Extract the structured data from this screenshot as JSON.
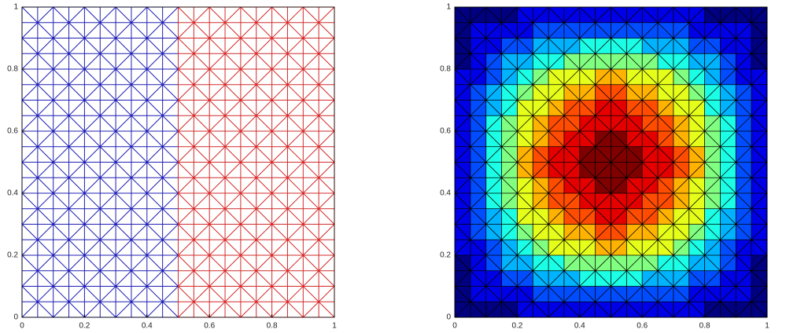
{
  "chart_data": [
    {
      "type": "mesh",
      "xlim": [
        0,
        1
      ],
      "ylim": [
        0,
        1
      ],
      "xticks": [
        0,
        0.2,
        0.4,
        0.6,
        0.8,
        1
      ],
      "yticks": [
        0,
        0.2,
        0.4,
        0.6,
        0.8,
        1
      ],
      "divisions": 20,
      "regions": [
        {
          "color": "#1f1fb4",
          "xlim": [
            0,
            0.5
          ]
        },
        {
          "color": "#d42a2a",
          "xlim": [
            0.5,
            1
          ]
        }
      ]
    },
    {
      "type": "heatmap",
      "colormap": "jet",
      "xlim": [
        0,
        1
      ],
      "ylim": [
        0,
        1
      ],
      "xticks": [
        0,
        0.2,
        0.4,
        0.6,
        0.8,
        1
      ],
      "yticks": [
        0,
        0.2,
        0.4,
        0.6,
        0.8,
        1
      ],
      "z": [
        [
          0,
          0,
          0,
          0,
          0.1,
          0.1,
          0.1,
          0.1,
          0.1,
          0.1,
          0.1,
          0.1,
          0.1,
          0.1,
          0.1,
          0.1,
          0,
          0,
          0,
          0
        ],
        [
          0,
          0.1,
          0.1,
          0.1,
          0.1,
          0.2,
          0.2,
          0.2,
          0.2,
          0.2,
          0.2,
          0.2,
          0.2,
          0.2,
          0.2,
          0.1,
          0.1,
          0.1,
          0.1,
          0
        ],
        [
          0,
          0.1,
          0.1,
          0.2,
          0.2,
          0.3,
          0.3,
          0.3,
          0.4,
          0.4,
          0.4,
          0.4,
          0.3,
          0.3,
          0.3,
          0.2,
          0.2,
          0.1,
          0.1,
          0
        ],
        [
          0,
          0.1,
          0.2,
          0.3,
          0.3,
          0.4,
          0.4,
          0.5,
          0.5,
          0.5,
          0.5,
          0.5,
          0.5,
          0.4,
          0.4,
          0.3,
          0.3,
          0.2,
          0.1,
          0
        ],
        [
          0.1,
          0.1,
          0.2,
          0.3,
          0.4,
          0.5,
          0.6,
          0.6,
          0.6,
          0.7,
          0.7,
          0.6,
          0.6,
          0.6,
          0.5,
          0.4,
          0.3,
          0.2,
          0.1,
          0.1
        ],
        [
          0.1,
          0.2,
          0.3,
          0.4,
          0.5,
          0.6,
          0.6,
          0.7,
          0.7,
          0.8,
          0.8,
          0.7,
          0.7,
          0.6,
          0.6,
          0.5,
          0.4,
          0.3,
          0.2,
          0.1
        ],
        [
          0.1,
          0.2,
          0.3,
          0.4,
          0.6,
          0.6,
          0.7,
          0.8,
          0.8,
          0.9,
          0.9,
          0.8,
          0.8,
          0.7,
          0.6,
          0.6,
          0.4,
          0.3,
          0.2,
          0.1
        ],
        [
          0.1,
          0.2,
          0.4,
          0.5,
          0.6,
          0.7,
          0.8,
          0.8,
          0.9,
          0.9,
          0.9,
          0.9,
          0.8,
          0.8,
          0.7,
          0.6,
          0.5,
          0.4,
          0.2,
          0.1
        ],
        [
          0.1,
          0.2,
          0.4,
          0.5,
          0.6,
          0.7,
          0.8,
          0.9,
          0.9,
          1.0,
          1.0,
          0.9,
          0.9,
          0.8,
          0.7,
          0.6,
          0.5,
          0.4,
          0.2,
          0.1
        ],
        [
          0.1,
          0.2,
          0.4,
          0.5,
          0.7,
          0.8,
          0.9,
          0.9,
          1.0,
          1.0,
          1.0,
          1.0,
          0.9,
          0.9,
          0.8,
          0.7,
          0.5,
          0.4,
          0.2,
          0.1
        ],
        [
          0.1,
          0.2,
          0.4,
          0.5,
          0.7,
          0.8,
          0.9,
          0.9,
          1.0,
          1.0,
          1.0,
          1.0,
          0.9,
          0.9,
          0.8,
          0.7,
          0.5,
          0.4,
          0.2,
          0.1
        ],
        [
          0.1,
          0.2,
          0.4,
          0.5,
          0.6,
          0.7,
          0.8,
          0.9,
          0.9,
          1.0,
          1.0,
          0.9,
          0.9,
          0.8,
          0.7,
          0.6,
          0.5,
          0.4,
          0.2,
          0.1
        ],
        [
          0.1,
          0.2,
          0.4,
          0.5,
          0.6,
          0.7,
          0.8,
          0.8,
          0.9,
          0.9,
          0.9,
          0.9,
          0.8,
          0.8,
          0.7,
          0.6,
          0.5,
          0.4,
          0.2,
          0.1
        ],
        [
          0.1,
          0.2,
          0.3,
          0.4,
          0.6,
          0.6,
          0.7,
          0.8,
          0.8,
          0.9,
          0.9,
          0.8,
          0.8,
          0.7,
          0.6,
          0.6,
          0.4,
          0.3,
          0.2,
          0.1
        ],
        [
          0.1,
          0.2,
          0.3,
          0.4,
          0.5,
          0.6,
          0.6,
          0.7,
          0.7,
          0.8,
          0.8,
          0.7,
          0.7,
          0.6,
          0.6,
          0.5,
          0.4,
          0.3,
          0.2,
          0.1
        ],
        [
          0.1,
          0.1,
          0.2,
          0.3,
          0.4,
          0.5,
          0.6,
          0.6,
          0.6,
          0.7,
          0.7,
          0.6,
          0.6,
          0.6,
          0.5,
          0.4,
          0.3,
          0.2,
          0.1,
          0.1
        ],
        [
          0,
          0.1,
          0.2,
          0.3,
          0.3,
          0.4,
          0.4,
          0.5,
          0.5,
          0.5,
          0.5,
          0.5,
          0.5,
          0.4,
          0.4,
          0.3,
          0.3,
          0.2,
          0.1,
          0
        ],
        [
          0,
          0.1,
          0.1,
          0.2,
          0.2,
          0.3,
          0.3,
          0.3,
          0.4,
          0.4,
          0.4,
          0.4,
          0.3,
          0.3,
          0.3,
          0.2,
          0.2,
          0.1,
          0.1,
          0
        ],
        [
          0,
          0.1,
          0.1,
          0.1,
          0.1,
          0.2,
          0.2,
          0.2,
          0.2,
          0.2,
          0.2,
          0.2,
          0.2,
          0.2,
          0.2,
          0.1,
          0.1,
          0.1,
          0.1,
          0
        ],
        [
          0,
          0,
          0,
          0,
          0.1,
          0.1,
          0.1,
          0.1,
          0.1,
          0.1,
          0.1,
          0.1,
          0.1,
          0.1,
          0.1,
          0.1,
          0,
          0,
          0,
          0
        ]
      ]
    }
  ]
}
